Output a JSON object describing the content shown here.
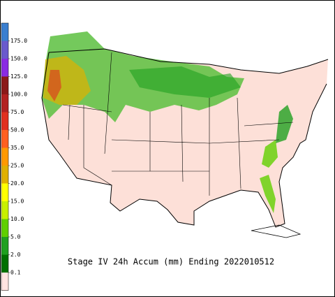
{
  "title": "Stage IV 24h Accum (mm) Ending 2022010512",
  "legend": {
    "ticks": [
      {
        "value": 175,
        "label": "175.0"
      },
      {
        "value": 150,
        "label": "150.0"
      },
      {
        "value": 125,
        "label": "125.0"
      },
      {
        "value": 100,
        "label": "100.0"
      },
      {
        "value": 75,
        "label": "75.0"
      },
      {
        "value": 50,
        "label": "50.0"
      },
      {
        "value": 35,
        "label": "35.0"
      },
      {
        "value": 25,
        "label": "25.0"
      },
      {
        "value": 20,
        "label": "20.0"
      },
      {
        "value": 15,
        "label": "15.0"
      },
      {
        "value": 10,
        "label": "10.0"
      },
      {
        "value": 5,
        "label": "5.0"
      },
      {
        "value": 2,
        "label": "2.0"
      },
      {
        "value": 0.1,
        "label": "0.1"
      }
    ],
    "colors": [
      "#3a7fd0",
      "#6a5acd",
      "#8a2be2",
      "#8b1a1a",
      "#b22222",
      "#e03020",
      "#ff6020",
      "#ff9900",
      "#e0b000",
      "#ffff00",
      "#c8f000",
      "#60d000",
      "#20a020",
      "#007000",
      "#ffe4e1"
    ]
  }
}
